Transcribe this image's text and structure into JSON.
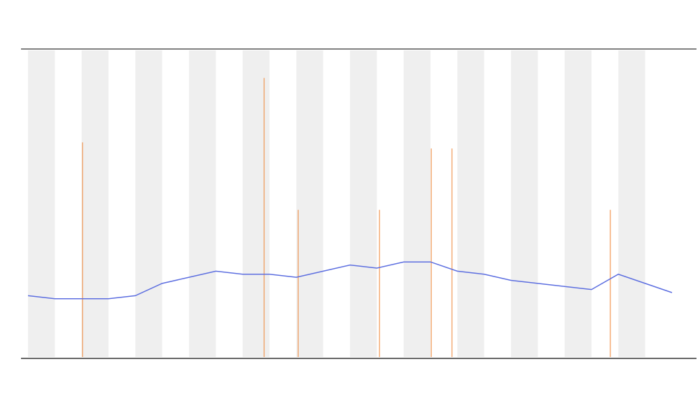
{
  "chart_data": {
    "type": "line",
    "x": [
      0,
      1,
      2,
      3,
      4,
      5,
      6,
      7,
      8,
      9,
      10,
      11,
      12,
      13,
      14,
      15,
      16,
      17,
      18,
      19,
      20,
      21,
      22,
      23,
      24
    ],
    "series": [
      {
        "color": "#5c6ee0",
        "values": [
          20,
          19,
          19,
          19,
          20,
          24,
          26,
          28,
          27,
          27,
          26,
          28,
          30,
          29,
          31,
          31,
          28,
          27,
          25,
          24,
          23,
          22,
          27,
          24,
          21
        ]
      }
    ],
    "spikes": {
      "color": "#f08a3c",
      "x": [
        2.03,
        8.8,
        10.07,
        13.1,
        15.03,
        15.8,
        21.7
      ],
      "values": [
        70,
        91,
        48,
        48,
        68,
        68,
        48
      ]
    },
    "xlim": [
      0,
      24
    ],
    "ylim": [
      0,
      100
    ],
    "bands": true
  }
}
